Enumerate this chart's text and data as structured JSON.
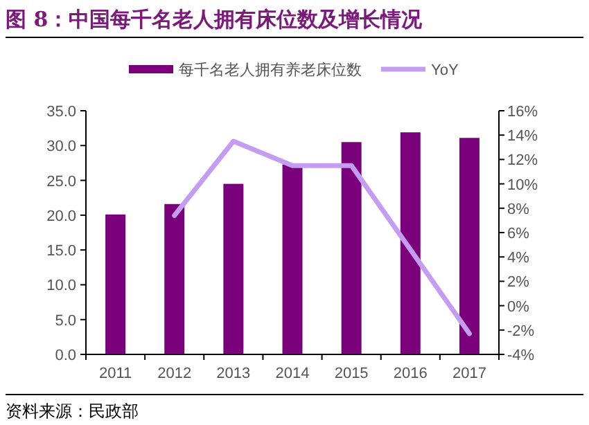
{
  "chart_data": {
    "type": "bar",
    "title": "图 8：中国每千名老人拥有床位数及增长情况",
    "categories": [
      "2011",
      "2012",
      "2013",
      "2014",
      "2015",
      "2016",
      "2017"
    ],
    "series": [
      {
        "name": "每千名老人拥有养老床位数",
        "color": "#7b007b",
        "values": [
          20.1,
          21.6,
          24.5,
          27.3,
          30.5,
          31.9,
          31.1
        ]
      },
      {
        "name": "YoY",
        "type": "line",
        "axis": "y2",
        "color": "#c49df2",
        "values": [
          null,
          7.4,
          13.5,
          11.5,
          11.5,
          null,
          -2.3
        ]
      }
    ],
    "ylim": [
      0,
      35
    ],
    "yticks": [
      {
        "value": 0,
        "label": "0.0"
      },
      {
        "value": 5,
        "label": "5.0"
      },
      {
        "value": 10,
        "label": "10.0"
      },
      {
        "value": 15,
        "label": "15.0"
      },
      {
        "value": 20,
        "label": "20.0"
      },
      {
        "value": 25,
        "label": "25.0"
      },
      {
        "value": 30,
        "label": "30.0"
      },
      {
        "value": 35,
        "label": "35.0"
      }
    ],
    "y2lim": [
      -4,
      16
    ],
    "y2ticks": [
      {
        "value": -4,
        "label": "-4%"
      },
      {
        "value": -2,
        "label": "-2%"
      },
      {
        "value": 0,
        "label": "0%"
      },
      {
        "value": 2,
        "label": "2%"
      },
      {
        "value": 4,
        "label": "4%"
      },
      {
        "value": 6,
        "label": "6%"
      },
      {
        "value": 8,
        "label": "8%"
      },
      {
        "value": 10,
        "label": "10%"
      },
      {
        "value": 12,
        "label": "12%"
      },
      {
        "value": 14,
        "label": "14%"
      },
      {
        "value": 16,
        "label": "16%"
      }
    ],
    "legend": "top",
    "annotations": [
      "资料来源：民政部"
    ]
  }
}
